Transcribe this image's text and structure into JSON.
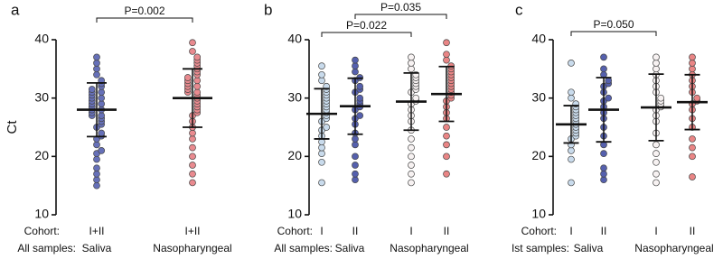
{
  "chart_data": [
    {
      "type": "dotplot",
      "panel": "a",
      "y_label": "Ct",
      "ylim": [
        10,
        40
      ],
      "yticks": [
        10,
        20,
        30,
        40
      ],
      "cohort_label": "Cohort:",
      "sample_label": "All samples:",
      "samples": [
        {
          "label": "Saliva",
          "groups": [
            {
              "cohort": "I+II",
              "color": "#6670b8",
              "mean": 28,
              "sd": 4.6,
              "values": [
                15,
                16,
                17,
                18,
                19.5,
                20.5,
                21,
                22,
                23,
                23.5,
                24,
                25,
                25.5,
                26,
                26.5,
                27,
                27,
                27.5,
                28,
                28,
                28.5,
                29,
                29,
                29.5,
                30,
                30,
                30.5,
                31,
                31,
                31.5,
                32,
                32.5,
                33,
                34,
                35,
                36,
                37
              ]
            }
          ]
        },
        {
          "label": "Nasopharyngeal",
          "groups": [
            {
              "cohort": "I+II",
              "color": "#e98a8f",
              "mean": 30,
              "sd": 5,
              "values": [
                15.5,
                17,
                18.5,
                20,
                21.5,
                23,
                24,
                25,
                26,
                27,
                27.5,
                28,
                28.5,
                29,
                29.5,
                30,
                30.5,
                31,
                31,
                31.5,
                32,
                32,
                32.5,
                33,
                33,
                33.5,
                34,
                34.5,
                35,
                35.5,
                36,
                36.5,
                37,
                38,
                39.5
              ]
            }
          ]
        }
      ],
      "comparisons": [
        {
          "label": "P=0.002",
          "cohort": "I+II"
        }
      ]
    },
    {
      "type": "dotplot",
      "panel": "b",
      "ylim": [
        10,
        40
      ],
      "yticks": [
        10,
        20,
        30,
        40
      ],
      "cohort_label": "Cohort:",
      "sample_label": "All samples:",
      "samples": [
        {
          "label": "Saliva",
          "groups": [
            {
              "cohort": "I",
              "color": "#c9dbec",
              "mean": 27.3,
              "sd": 4.3,
              "values": [
                15.5,
                19,
                20.5,
                21.5,
                22.5,
                23.5,
                24.5,
                25,
                26,
                26.5,
                27,
                27.5,
                28,
                28.5,
                29,
                29.5,
                30,
                30.5,
                31,
                31.5,
                32,
                33,
                34,
                35.5
              ]
            },
            {
              "cohort": "II",
              "color": "#5560ad",
              "mean": 28.6,
              "sd": 4.8,
              "values": [
                16,
                17,
                18.5,
                20,
                22,
                23,
                24,
                25.5,
                26.5,
                27,
                28,
                28.5,
                29,
                29.5,
                30,
                31,
                31.5,
                32,
                33,
                33.5,
                34.5,
                35.5,
                36.5
              ]
            }
          ]
        },
        {
          "label": "Nasopharyngeal",
          "groups": [
            {
              "cohort": "I",
              "color": "#f7f2f2",
              "mean": 29.4,
              "sd": 4.9,
              "values": [
                15.5,
                17,
                18.5,
                20,
                21.5,
                23,
                24.5,
                26,
                27,
                28,
                29,
                29.5,
                30,
                31,
                31.5,
                32,
                32.5,
                33,
                33.5,
                34,
                35,
                36,
                37
              ]
            },
            {
              "cohort": "II",
              "color": "#e98585",
              "mean": 30.7,
              "sd": 4.7,
              "values": [
                17,
                20,
                22,
                23.5,
                25,
                26.5,
                27.5,
                28.5,
                29.5,
                30,
                30.5,
                31,
                31.5,
                32,
                32.5,
                33,
                33.5,
                34,
                34.5,
                35,
                35.5,
                36.5,
                37.5,
                39.5
              ]
            }
          ]
        }
      ],
      "comparisons": [
        {
          "label": "P=0.022",
          "cohort": "I"
        },
        {
          "label": "P=0.035",
          "cohort": "II"
        }
      ]
    },
    {
      "type": "dotplot",
      "panel": "c",
      "ylim": [
        10,
        40
      ],
      "yticks": [
        10,
        20,
        30,
        40
      ],
      "cohort_label": "Cohort:",
      "sample_label": "Ist samples:",
      "samples": [
        {
          "label": "Saliva",
          "groups": [
            {
              "cohort": "I",
              "color": "#c9dbec",
              "mean": 25.5,
              "sd": 3.2,
              "values": [
                15.5,
                19.5,
                21,
                22,
                23,
                23.5,
                24,
                24.5,
                25,
                25.5,
                26,
                26.5,
                27,
                27.5,
                28,
                28.5,
                29,
                30,
                31,
                36
              ]
            },
            {
              "cohort": "II",
              "color": "#5560ad",
              "mean": 28,
              "sd": 5.5,
              "values": [
                16,
                17,
                18,
                20.5,
                22,
                23.5,
                25,
                26.5,
                27.5,
                28.5,
                29.5,
                30,
                31,
                32,
                32.5,
                33,
                34,
                35,
                37
              ]
            }
          ]
        },
        {
          "label": "Nasopharyngeal",
          "groups": [
            {
              "cohort": "I",
              "color": "#f7f2f2",
              "mean": 28.4,
              "sd": 5.7,
              "values": [
                15.5,
                17,
                19,
                20.5,
                22,
                24,
                26,
                27,
                28,
                28.5,
                29,
                29.5,
                30,
                31,
                32,
                33,
                34,
                35,
                36,
                37
              ]
            },
            {
              "cohort": "II",
              "color": "#e98585",
              "mean": 29.3,
              "sd": 4.7,
              "values": [
                16.5,
                20,
                21.5,
                23,
                25,
                26.5,
                28,
                29,
                29.5,
                30,
                31,
                32,
                33,
                34,
                35,
                36,
                37
              ]
            }
          ]
        }
      ],
      "comparisons": [
        {
          "label": "P=0.050",
          "cohort": "I"
        }
      ]
    }
  ]
}
